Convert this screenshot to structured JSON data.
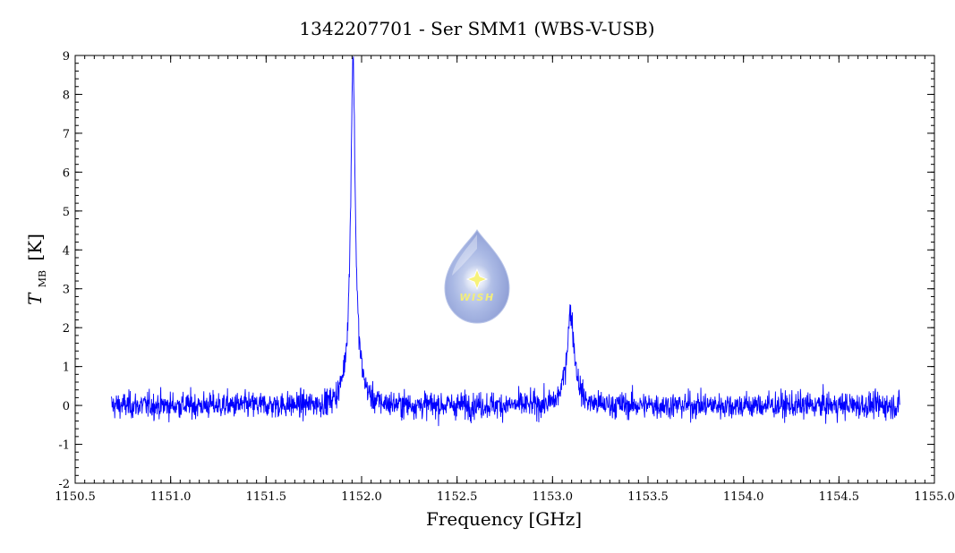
{
  "chart_data": {
    "type": "line",
    "title": "1342207701 - Ser SMM1 (WBS-V-USB)",
    "xlabel": "Frequency [GHz]",
    "ylabel_main": "T",
    "ylabel_sub": "MB",
    "ylabel_unit": "[K]",
    "xlim": [
      1150.5,
      1155.0
    ],
    "ylim": [
      -2,
      9
    ],
    "x_ticks": [
      "1150.5",
      "1151.0",
      "1151.5",
      "1152.0",
      "1152.5",
      "1153.0",
      "1153.5",
      "1154.0",
      "1154.5",
      "1155.0"
    ],
    "y_ticks": [
      "-2",
      "-1",
      "0",
      "1",
      "2",
      "3",
      "4",
      "5",
      "6",
      "7",
      "8",
      "9"
    ],
    "grid": false,
    "series": [
      {
        "color": "#0000ff",
        "x_range": [
          1150.69,
          1154.82
        ],
        "noise_rms": 0.17,
        "lines": [
          {
            "center": 1151.955,
            "peak": 8.4,
            "width_ghz": 0.014,
            "wing_amp": 0.55,
            "wing_width_ghz": 0.045
          },
          {
            "center": 1153.095,
            "peak": 1.85,
            "width_ghz": 0.02,
            "wing_amp": 0.55,
            "wing_width_ghz": 0.035
          }
        ]
      }
    ]
  },
  "logo": {
    "text": "WISH",
    "icon": "water-drop-star-icon"
  }
}
